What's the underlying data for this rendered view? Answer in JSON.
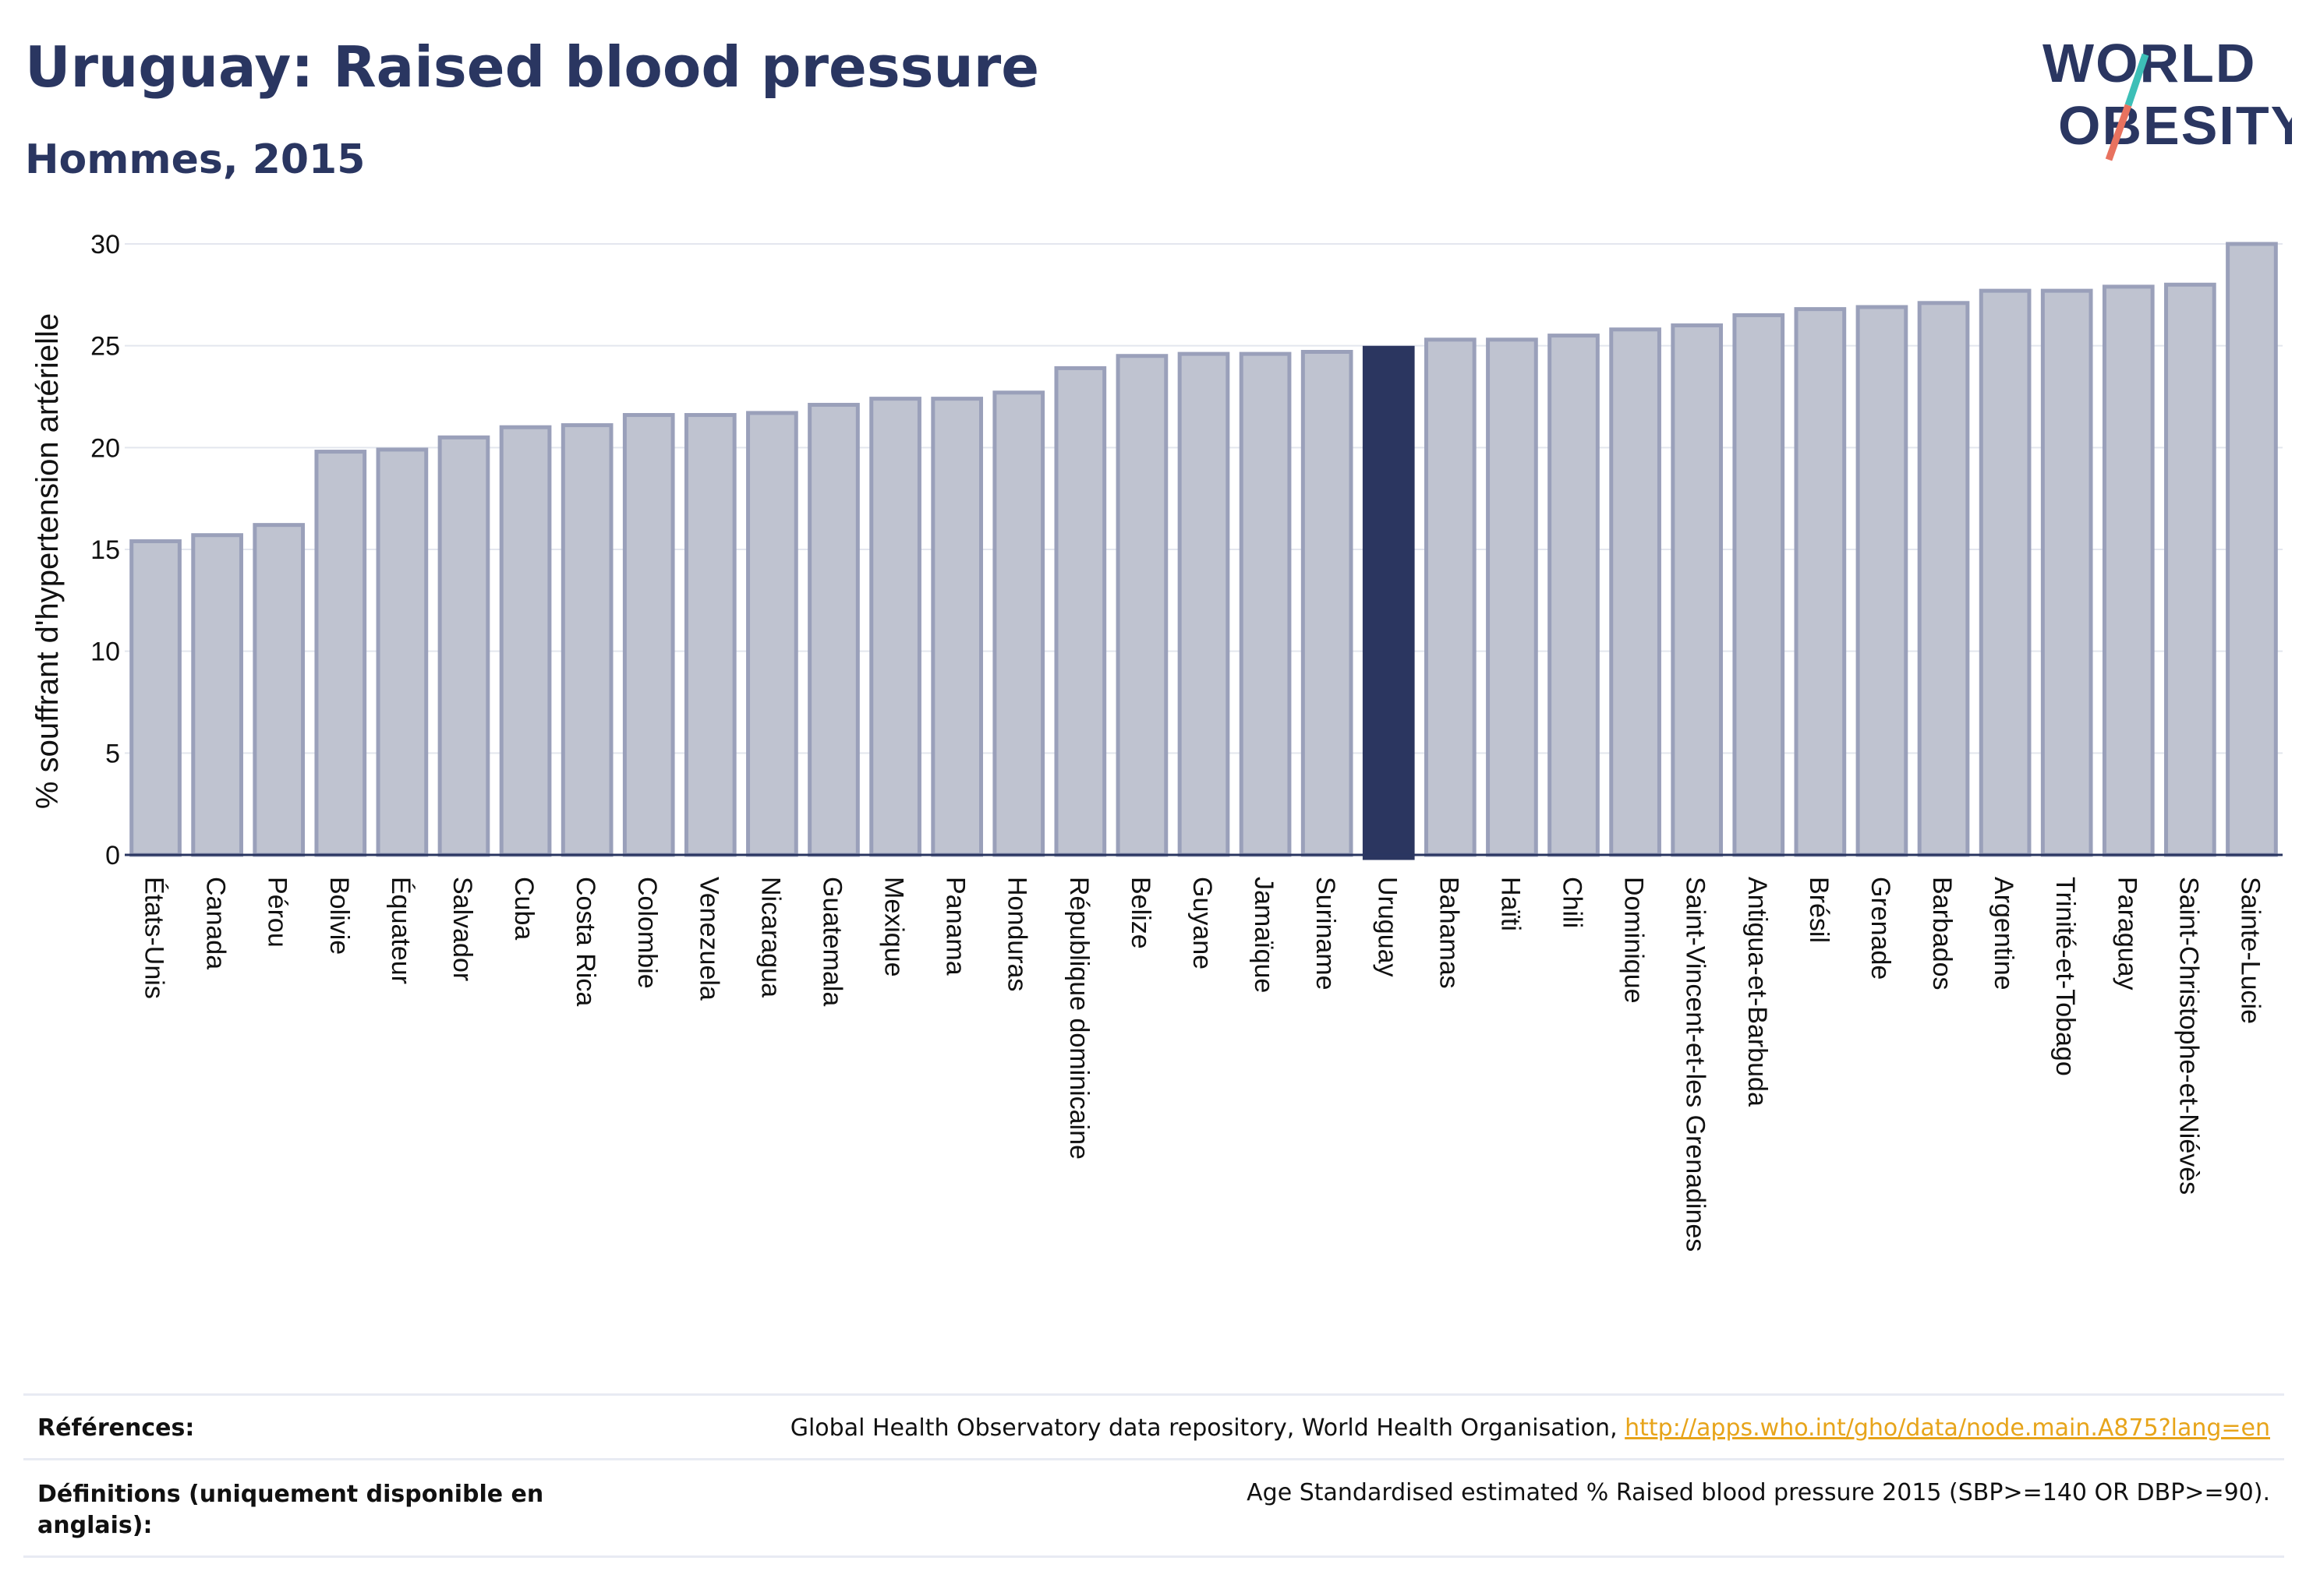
{
  "header": {
    "title": "Uruguay: Raised blood pressure",
    "subtitle": "Hommes, 2015"
  },
  "logo": {
    "line1": "WORLD",
    "line2": "OBESITY"
  },
  "chart_data": {
    "type": "bar",
    "ylabel": "% souffrant d'hypertension artérielle",
    "ylim": [
      0,
      30
    ],
    "yticks": [
      0,
      5,
      10,
      15,
      20,
      25,
      30
    ],
    "grid": true,
    "highlight": "Uruguay",
    "colors": {
      "bar": "#bfc3d0",
      "bar_edge": "#9aa0ba",
      "highlight": "#2b3660",
      "axis": "#2a3661",
      "grid": "#e3e6ee"
    },
    "categories": [
      "États-Unis",
      "Canada",
      "Pérou",
      "Bolivie",
      "Équateur",
      "Salvador",
      "Cuba",
      "Costa Rica",
      "Colombie",
      "Venezuela",
      "Nicaragua",
      "Guatemala",
      "Mexique",
      "Panama",
      "Honduras",
      "République dominicaine",
      "Belize",
      "Guyane",
      "Jamaïque",
      "Suriname",
      "Uruguay",
      "Bahamas",
      "Haïti",
      "Chili",
      "Dominique",
      "Saint-Vincent-et-les Grenadines",
      "Antigua-et-Barbuda",
      "Brésil",
      "Grenade",
      "Barbados",
      "Argentine",
      "Trinité-et-Tobago",
      "Paraguay",
      "Saint-Christophe-et-Niévès",
      "Sainte-Lucie"
    ],
    "values": [
      15.4,
      15.7,
      16.2,
      19.8,
      19.9,
      20.5,
      21.0,
      21.1,
      21.6,
      21.6,
      21.7,
      22.1,
      22.4,
      22.4,
      22.7,
      23.9,
      24.5,
      24.6,
      24.6,
      24.7,
      24.9,
      25.3,
      25.3,
      25.5,
      25.8,
      26.0,
      26.5,
      26.8,
      26.9,
      27.1,
      27.7,
      27.7,
      27.9,
      28.0,
      30.0
    ]
  },
  "references": {
    "label": "Références:",
    "text": "Global Health Observatory data repository, World Health Organisation, ",
    "link": "http://apps.who.int/gho/data/node.main.A875?lang=en"
  },
  "definitions": {
    "label": "Définitions (uniquement disponible en anglais):",
    "text": "Age Standardised estimated % Raised blood pressure 2015 (SBP>=140 OR DBP>=90)."
  }
}
